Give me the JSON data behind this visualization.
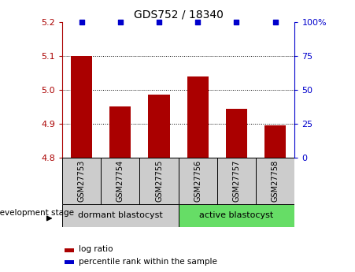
{
  "title": "GDS752 / 18340",
  "samples": [
    "GSM27753",
    "GSM27754",
    "GSM27755",
    "GSM27756",
    "GSM27757",
    "GSM27758"
  ],
  "log_ratio": [
    5.1,
    4.95,
    4.985,
    5.04,
    4.945,
    4.895
  ],
  "percentile_rank": [
    100,
    100,
    100,
    100,
    100,
    100
  ],
  "ylim_left": [
    4.8,
    5.2
  ],
  "ylim_right": [
    0,
    100
  ],
  "yticks_left": [
    4.8,
    4.9,
    5.0,
    5.1,
    5.2
  ],
  "yticks_right": [
    0,
    25,
    50,
    75,
    100
  ],
  "bar_color": "#aa0000",
  "percentile_color": "#0000cc",
  "group1_label": "dormant blastocyst",
  "group2_label": "active blastocyst",
  "group1_color": "#cccccc",
  "group2_color": "#66dd66",
  "stage_label": "development stage",
  "legend_bar": "log ratio",
  "legend_pct": "percentile rank within the sample",
  "bar_width": 0.55,
  "base_value": 4.8,
  "grid_lines": [
    4.9,
    5.0,
    5.1
  ]
}
